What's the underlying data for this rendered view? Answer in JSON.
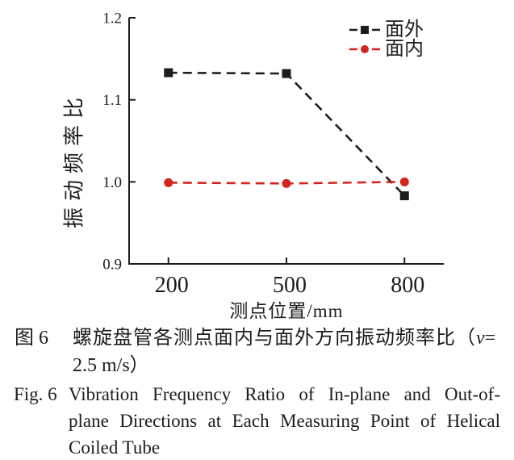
{
  "chart_data": {
    "type": "line",
    "title": "",
    "xlabel": "测点位置/mm",
    "ylabel": "振动频率比",
    "x": [
      200,
      500,
      800
    ],
    "x_ticks": [
      200,
      500,
      800
    ],
    "y_ticks": [
      0.9,
      1.0,
      1.1,
      1.2
    ],
    "xlim": [
      100,
      900
    ],
    "ylim": [
      0.9,
      1.2
    ],
    "grid": false,
    "legend_position": "top-right",
    "axis_color": "#1c1c1c",
    "series": [
      {
        "name": "面外",
        "color": "#1c1c1c",
        "marker": "square",
        "line_style": "dashed",
        "values": [
          1.133,
          1.132,
          0.983
        ]
      },
      {
        "name": "面内",
        "color": "#d2251e",
        "marker": "circle",
        "line_style": "dashed",
        "values": [
          0.999,
          0.998,
          1.0
        ]
      }
    ]
  },
  "caption_zh": {
    "label": "图 6",
    "line1_text": "螺旋盘管各测点面内与面外方向振动频率比（",
    "variable": "v",
    "equals": "=",
    "line2": "2.5 m/s）"
  },
  "caption_en": {
    "label": "Fig. 6",
    "lines": [
      "Vibration Frequency Ratio of In-plane and Out-of-",
      "plane Directions at Each Measuring Point of Helical",
      "Coiled Tube"
    ]
  }
}
